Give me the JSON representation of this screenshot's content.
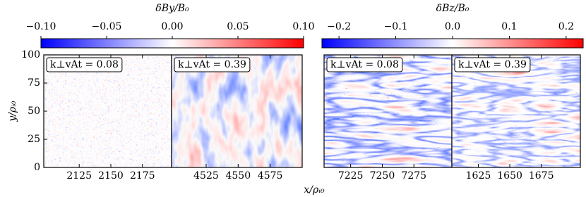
{
  "chart_data": [
    {
      "type": "colorbar",
      "label": "δBy/B₀",
      "xlim": [
        -0.1,
        0.1
      ],
      "xticks": [
        {
          "value": -0.1,
          "label": "−0.10"
        },
        {
          "value": -0.05,
          "label": "−0.05"
        },
        {
          "value": 0,
          "label": "0.00"
        },
        {
          "value": 0.05,
          "label": "0.05"
        },
        {
          "value": 0.1,
          "label": "0.10"
        }
      ]
    },
    {
      "type": "colorbar",
      "label": "δBz/B₀",
      "xlim": [
        -0.23,
        0.23
      ],
      "xticks": [
        {
          "value": -0.2,
          "label": "−0.2"
        },
        {
          "value": -0.1,
          "label": "−0.1"
        },
        {
          "value": 0,
          "label": "0.0"
        },
        0.1,
        0.2
      ]
    },
    {
      "type": "heatmap",
      "annotation": "k⊥vAt = 0.08",
      "xlim": [
        2097,
        2198
      ],
      "xticks": [
        2125,
        2150,
        2175
      ],
      "ylim": [
        0,
        100
      ],
      "yticks": [
        0,
        25,
        50,
        75,
        100
      ],
      "ylabel": "y/ρᵢ₀"
    },
    {
      "type": "heatmap",
      "annotation": "k⊥vAt = 0.39",
      "xlim": [
        4498,
        4600
      ],
      "xticks": [
        4525,
        4550,
        4575
      ],
      "ylim": [
        0,
        100
      ]
    },
    {
      "type": "heatmap",
      "annotation": "k⊥vAt = 0.08",
      "xlim": [
        7204,
        7305
      ],
      "xticks": [
        7225,
        7250,
        7275
      ],
      "ylim": [
        0,
        100
      ],
      "xlabel": "x/ρᵢ₀"
    },
    {
      "type": "heatmap",
      "annotation": "k⊥vAt = 0.39",
      "xlim": [
        1604,
        1706
      ],
      "xticks": [
        1625,
        1650,
        1675
      ],
      "ylim": [
        0,
        100
      ]
    }
  ]
}
